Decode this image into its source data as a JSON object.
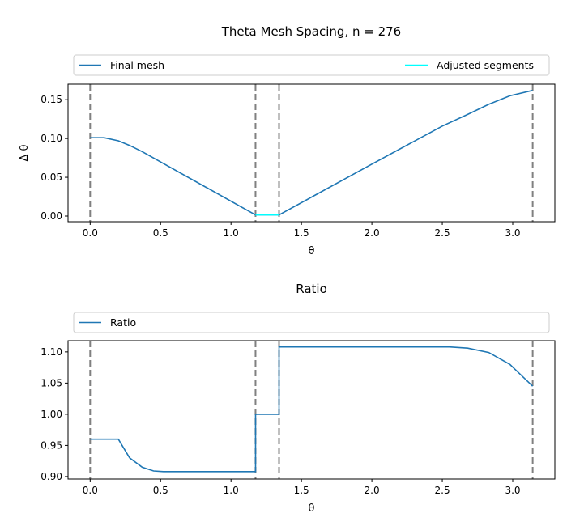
{
  "chart_data": [
    {
      "type": "line",
      "title": "Theta Mesh Spacing, n = 276",
      "xlabel": "θ",
      "ylabel": "Δ θ",
      "xlim": [
        -0.157,
        3.299
      ],
      "ylim": [
        -0.0073,
        0.17
      ],
      "xticks": [
        "0.0",
        "0.5",
        "1.0",
        "1.5",
        "2.0",
        "2.5",
        "3.0"
      ],
      "xtick_values": [
        0,
        0.5,
        1,
        1.5,
        2,
        2.5,
        3
      ],
      "yticks": [
        "0.00",
        "0.05",
        "0.10",
        "0.15"
      ],
      "ytick_values": [
        0,
        0.05,
        0.1,
        0.15
      ],
      "legend": {
        "placement": "top-expanded",
        "entries": [
          "Final mesh",
          "Adjusted segments"
        ]
      },
      "vlines": [
        0,
        1.174,
        1.341,
        3.1416
      ],
      "series": [
        {
          "name": "Final mesh",
          "color": "#1f77b4",
          "x": [
            0,
            0.1,
            0.2,
            0.28,
            0.37,
            1.174,
            1.341,
            2.0,
            2.5,
            2.68,
            2.83,
            2.98,
            3.1416
          ],
          "y": [
            0.101,
            0.101,
            0.097,
            0.091,
            0.083,
            0.0015,
            0.0015,
            0.067,
            0.116,
            0.131,
            0.144,
            0.155,
            0.162
          ]
        },
        {
          "name": "Adjusted segments",
          "color": "#00ffff",
          "x": [
            1.174,
            1.341
          ],
          "y": [
            0.0015,
            0.0015
          ]
        }
      ]
    },
    {
      "type": "line",
      "title": "Ratio",
      "xlabel": "θ",
      "ylabel": "",
      "xlim": [
        -0.157,
        3.299
      ],
      "ylim": [
        0.896,
        1.118
      ],
      "xticks": [
        "0.0",
        "0.5",
        "1.0",
        "1.5",
        "2.0",
        "2.5",
        "3.0"
      ],
      "xtick_values": [
        0,
        0.5,
        1,
        1.5,
        2,
        2.5,
        3
      ],
      "yticks": [
        "0.90",
        "0.95",
        "1.00",
        "1.05",
        "1.10"
      ],
      "ytick_values": [
        0.9,
        0.95,
        1.0,
        1.05,
        1.1
      ],
      "legend": {
        "placement": "top-expanded",
        "entries": [
          "Ratio"
        ]
      },
      "vlines": [
        0,
        1.174,
        1.341,
        3.1416
      ],
      "series": [
        {
          "name": "Ratio",
          "color": "#1f77b4",
          "x": [
            0,
            0.2,
            0.28,
            0.37,
            0.45,
            0.52,
            1.174,
            1.174,
            1.341,
            1.341,
            2.55,
            2.68,
            2.83,
            2.98,
            3.1416
          ],
          "y": [
            0.96,
            0.96,
            0.93,
            0.915,
            0.909,
            0.908,
            0.908,
            1.0,
            1.0,
            1.108,
            1.108,
            1.106,
            1.099,
            1.08,
            1.045
          ]
        }
      ]
    }
  ]
}
